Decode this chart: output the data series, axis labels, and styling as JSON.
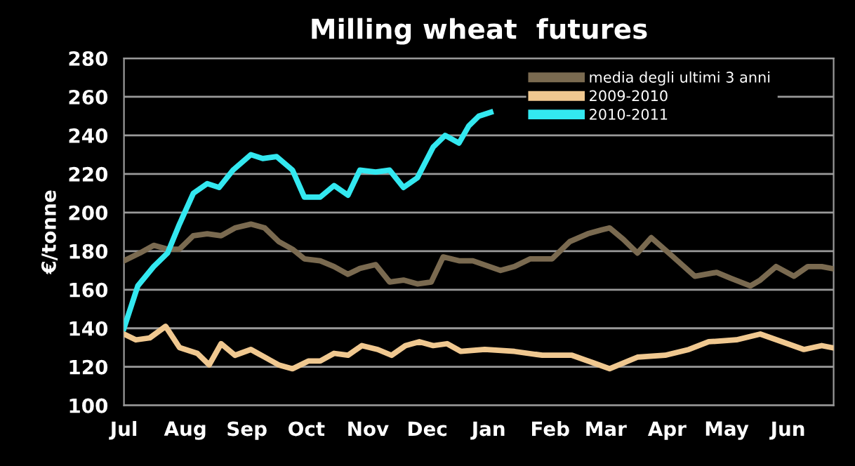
{
  "chart_data": {
    "type": "line",
    "title": "Milling wheat  futures",
    "ylabel": "€/tonne",
    "xlim": [
      "2010-07-01",
      "2011-06-24"
    ],
    "xticks": [
      {
        "value": "2010-07-01",
        "label": "Jul"
      },
      {
        "value": "2010-08-01",
        "label": "Aug"
      },
      {
        "value": "2010-09-01",
        "label": "Sep"
      },
      {
        "value": "2010-10-01",
        "label": "Oct"
      },
      {
        "value": "2010-11-01",
        "label": "Nov"
      },
      {
        "value": "2010-12-01",
        "label": "Dec"
      },
      {
        "value": "2011-01-01",
        "label": "Jan"
      },
      {
        "value": "2011-02-01",
        "label": "Feb"
      },
      {
        "value": "2011-03-01",
        "label": "Mar"
      },
      {
        "value": "2011-04-01",
        "label": "Apr"
      },
      {
        "value": "2011-05-01",
        "label": "May"
      },
      {
        "value": "2011-06-01",
        "label": "Jun"
      }
    ],
    "ylim": [
      100,
      280
    ],
    "yticks": [
      100,
      120,
      140,
      160,
      180,
      200,
      220,
      240,
      260,
      280
    ],
    "grid": "y",
    "legend": "top right",
    "marker": "none",
    "line_style": "solid",
    "series": [
      {
        "name": "media degli ultimi 3 anni",
        "color": "#7a6a50",
        "x": [
          "2010-07-01",
          "2010-07-09",
          "2010-07-16",
          "2010-07-23",
          "2010-07-29",
          "2010-08-05",
          "2010-08-12",
          "2010-08-19",
          "2010-08-26",
          "2010-09-03",
          "2010-09-10",
          "2010-09-17",
          "2010-09-24",
          "2010-09-30",
          "2010-10-08",
          "2010-10-15",
          "2010-10-22",
          "2010-10-28",
          "2010-11-05",
          "2010-11-12",
          "2010-11-19",
          "2010-11-26",
          "2010-12-03",
          "2010-12-09",
          "2010-12-17",
          "2010-12-24",
          "2011-01-07",
          "2011-01-14",
          "2011-01-22",
          "2011-02-02",
          "2011-02-05",
          "2011-02-11",
          "2011-02-20",
          "2011-02-27",
          "2011-03-03",
          "2011-03-10",
          "2011-03-17",
          "2011-03-24",
          "2011-04-03",
          "2011-04-15",
          "2011-04-26",
          "2011-05-03",
          "2011-05-13",
          "2011-05-18",
          "2011-05-26",
          "2011-06-04",
          "2011-06-11",
          "2011-06-18",
          "2011-06-23"
        ],
        "values": [
          175,
          179,
          183,
          181,
          181,
          188,
          189,
          188,
          192,
          194,
          192,
          185,
          181,
          176,
          175,
          172,
          168,
          171,
          173,
          164,
          165,
          163,
          164,
          177,
          175,
          175,
          170,
          172,
          176,
          176,
          179,
          185,
          189,
          191,
          192,
          186,
          179,
          187,
          178,
          167,
          169,
          166,
          162,
          165,
          172,
          167,
          172,
          172,
          171
        ]
      },
      {
        "name": "2009-2010",
        "color": "#f0c890",
        "x": [
          "2010-07-01",
          "2010-07-07",
          "2010-07-14",
          "2010-07-22",
          "2010-07-29",
          "2010-08-07",
          "2010-08-13",
          "2010-08-19",
          "2010-08-26",
          "2010-09-03",
          "2010-09-10",
          "2010-09-17",
          "2010-09-24",
          "2010-10-02",
          "2010-10-08",
          "2010-10-15",
          "2010-10-22",
          "2010-10-29",
          "2010-11-06",
          "2010-11-13",
          "2010-11-20",
          "2010-11-27",
          "2010-12-04",
          "2010-12-11",
          "2010-12-18",
          "2010-12-30",
          "2011-01-14",
          "2011-01-28",
          "2011-02-12",
          "2011-02-23",
          "2011-03-03",
          "2011-03-17",
          "2011-03-31",
          "2011-04-12",
          "2011-04-22",
          "2011-05-06",
          "2011-05-18",
          "2011-05-29",
          "2011-06-09",
          "2011-06-18",
          "2011-06-23"
        ],
        "values": [
          137,
          134,
          135,
          141,
          130,
          127,
          121,
          132,
          126,
          129,
          125,
          121,
          119,
          123,
          123,
          127,
          126,
          131,
          129,
          126,
          131,
          133,
          131,
          132,
          128,
          129,
          128,
          126,
          126,
          122,
          119,
          125,
          126,
          129,
          133,
          134,
          137,
          133,
          129,
          131,
          130
        ]
      },
      {
        "name": "2010-2011",
        "color": "#33e8f0",
        "x": [
          "2010-07-01",
          "2010-07-08",
          "2010-07-16",
          "2010-07-23",
          "2010-07-29",
          "2010-08-05",
          "2010-08-12",
          "2010-08-18",
          "2010-08-25",
          "2010-09-03",
          "2010-09-09",
          "2010-09-16",
          "2010-09-24",
          "2010-09-30",
          "2010-10-08",
          "2010-10-15",
          "2010-10-22",
          "2010-10-28",
          "2010-11-05",
          "2010-11-12",
          "2010-11-19",
          "2010-11-26",
          "2010-12-04",
          "2010-12-10",
          "2010-12-17",
          "2010-12-22",
          "2010-12-27",
          "2011-01-02"
        ],
        "values": [
          140,
          162,
          172,
          179,
          194,
          210,
          215,
          213,
          222,
          230,
          228,
          229,
          222,
          208,
          208,
          214,
          209,
          222,
          221,
          222,
          213,
          218,
          234,
          240,
          236,
          245,
          250,
          252
        ]
      }
    ]
  }
}
